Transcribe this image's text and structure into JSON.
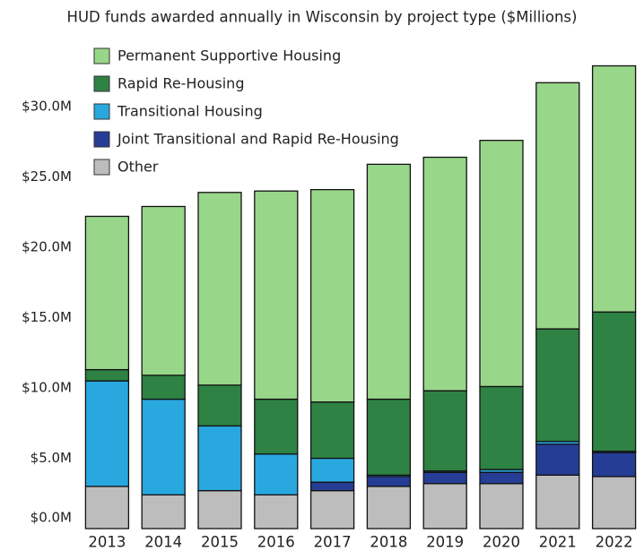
{
  "chart_data": {
    "type": "stacked_bar",
    "subtitle": "HUD funds awarded annually in Wisconsin by project type ($Millions)",
    "categories": [
      "2013",
      "2014",
      "2015",
      "2016",
      "2017",
      "2018",
      "2019",
      "2020",
      "2021",
      "2022"
    ],
    "series": [
      {
        "name": "Other",
        "color": "#bdbdbd",
        "values": [
          3.0,
          2.4,
          2.7,
          2.4,
          2.7,
          3.0,
          3.2,
          3.2,
          3.8,
          3.7
        ]
      },
      {
        "name": "Joint Transitional and Rapid Re-Housing",
        "color": "#263d96",
        "values": [
          0,
          0,
          0,
          0,
          0.6,
          0.7,
          0.8,
          0.8,
          2.2,
          1.7
        ]
      },
      {
        "name": "Transitional Housing",
        "color": "#29a8e0",
        "values": [
          7.5,
          6.8,
          4.6,
          2.9,
          1.7,
          0.1,
          0.1,
          0.2,
          0.2,
          0.1
        ]
      },
      {
        "name": "Rapid Re-Housing",
        "color": "#2e8243",
        "values": [
          0.8,
          1.7,
          2.9,
          3.9,
          4.0,
          5.4,
          5.7,
          5.9,
          8.0,
          9.9
        ]
      },
      {
        "name": "Permanent Supportive Housing",
        "color": "#98d68a",
        "values": [
          10.9,
          12.0,
          13.7,
          14.8,
          15.1,
          16.7,
          16.6,
          17.5,
          17.5,
          17.5
        ]
      }
    ],
    "ylim": [
      0,
      33.5
    ],
    "yticks": [
      {
        "value": 0,
        "label": "$0.0M"
      },
      {
        "value": 5,
        "label": "$5.0M"
      },
      {
        "value": 10,
        "label": "$10.0M"
      },
      {
        "value": 15,
        "label": "$15.0M"
      },
      {
        "value": 20,
        "label": "$20.0M"
      },
      {
        "value": 25,
        "label": "$25.0M"
      },
      {
        "value": 30,
        "label": "$30.0M"
      }
    ],
    "legend": "upper left"
  }
}
